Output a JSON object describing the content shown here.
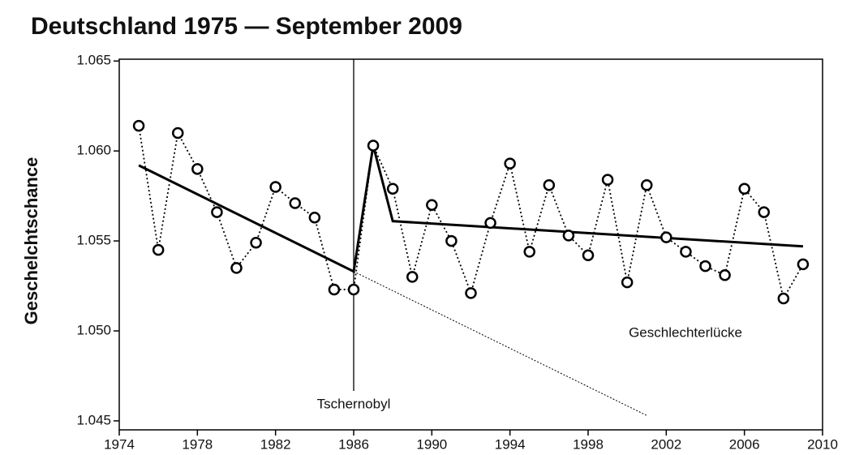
{
  "chart_data": {
    "type": "line",
    "title": "Deutschland 1975 — September 2009",
    "ylabel": "Geschelchtschance",
    "x": [
      1975,
      1976,
      1977,
      1978,
      1979,
      1980,
      1981,
      1982,
      1983,
      1984,
      1985,
      1986,
      1987,
      1988,
      1989,
      1990,
      1991,
      1992,
      1993,
      1994,
      1995,
      1996,
      1997,
      1998,
      1999,
      2000,
      2001,
      2002,
      2003,
      2004,
      2005,
      2006,
      2007,
      2008,
      2009
    ],
    "values": [
      1.0614,
      1.0545,
      1.061,
      1.059,
      1.0566,
      1.0535,
      1.0549,
      1.058,
      1.0571,
      1.0563,
      1.0523,
      1.0523,
      1.0603,
      1.0579,
      1.053,
      1.057,
      1.055,
      1.0521,
      1.056,
      1.0593,
      1.0544,
      1.0581,
      1.0553,
      1.0542,
      1.0584,
      1.0527,
      1.0581,
      1.0552,
      1.0544,
      1.0536,
      1.0531,
      1.0579,
      1.0566,
      1.0518,
      1.0537
    ],
    "color": "#000000",
    "trend": {
      "x": [
        1975,
        1986,
        1987,
        1988,
        2009
      ],
      "values": [
        1.0592,
        1.0533,
        1.0603,
        1.0561,
        1.0547
      ]
    },
    "extrapolation": {
      "x": [
        1986,
        2001
      ],
      "values": [
        1.0533,
        1.0453
      ]
    },
    "annotations": [
      {
        "text": "Tschernobyl",
        "x": 1986
      },
      {
        "text": "Geschlechterlücke"
      }
    ],
    "xlim": [
      1974,
      2010
    ],
    "xticks": [
      1974,
      1978,
      1982,
      1986,
      1990,
      1994,
      1998,
      2002,
      2006,
      2010
    ],
    "ylim": [
      1.0445,
      1.0651
    ],
    "yticks": [
      1.045,
      {
        "value": 1.05,
        "label": "1.050"
      },
      1.055,
      {
        "value": 1.06,
        "label": "1.060"
      },
      1.065
    ]
  }
}
